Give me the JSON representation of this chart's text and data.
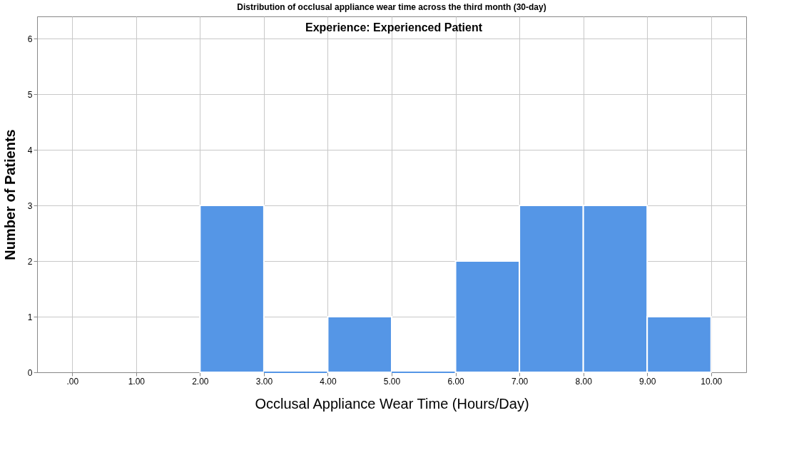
{
  "chart_data": {
    "type": "histogram",
    "title": "Distribution of occlusal appliance wear time across the third month (30-day)",
    "annotations": [
      "Experience: Experienced Patient"
    ],
    "xlabel": "Occlusal Appliance Wear Time (Hours/Day)",
    "ylabel": "Number of Patients",
    "bins": [
      2,
      3,
      4,
      5,
      6,
      7,
      8,
      9,
      10
    ],
    "values": [
      3,
      0,
      1,
      0,
      2,
      3,
      3,
      1
    ],
    "color": "#5596e6",
    "xlim": [
      -0.55,
      10.55
    ],
    "xticks": [
      {
        "value": 0,
        "label": ".00"
      },
      {
        "value": 1,
        "label": "1.00"
      },
      {
        "value": 2,
        "label": "2.00"
      },
      {
        "value": 3,
        "label": "3.00"
      },
      {
        "value": 4,
        "label": "4.00"
      },
      {
        "value": 5,
        "label": "5.00"
      },
      {
        "value": 6,
        "label": "6.00"
      },
      {
        "value": 7,
        "label": "7.00"
      },
      {
        "value": 8,
        "label": "8.00"
      },
      {
        "value": 9,
        "label": "9.00"
      },
      {
        "value": 10,
        "label": "10.00"
      }
    ],
    "ylim": [
      0,
      6.4
    ],
    "yticks": [
      0,
      1,
      2,
      3,
      4,
      5,
      6
    ],
    "grid": true
  }
}
